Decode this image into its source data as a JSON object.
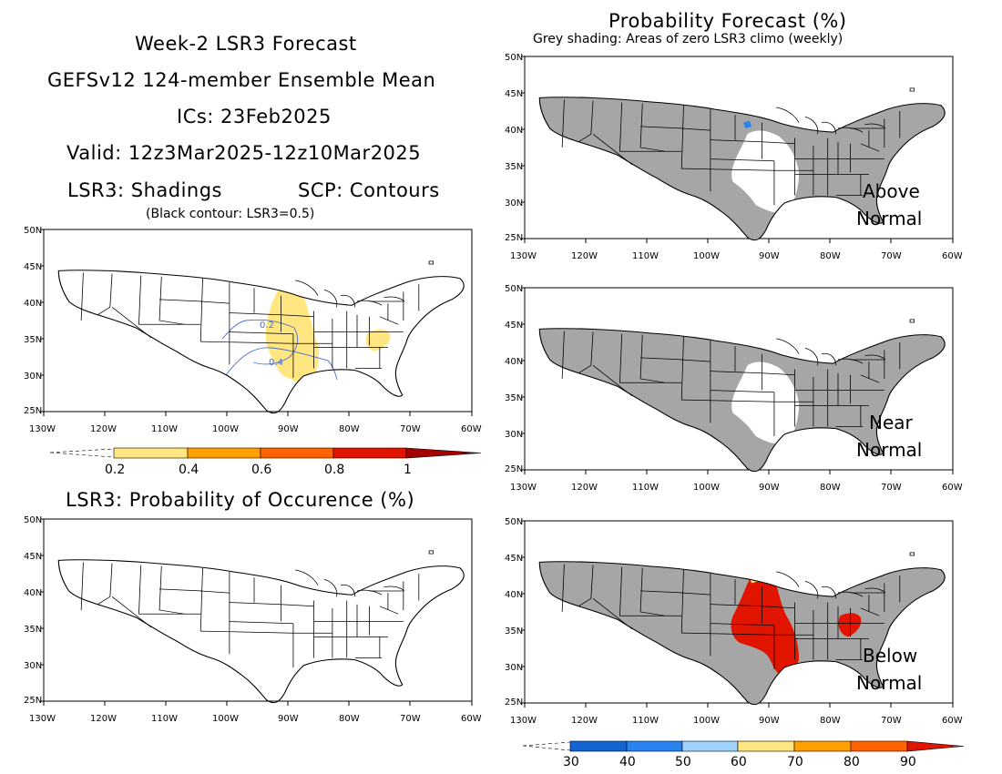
{
  "left_header": {
    "line1": "Week-2 LSR3 Forecast",
    "line2": "GEFSv12 124-member Ensemble Mean",
    "line3": "ICs: 23Feb2025",
    "line4": "Valid: 12z3Mar2025-12z10Mar2025",
    "shadings": "LSR3: Shadings",
    "contours": "SCP: Contours",
    "note": "(Black contour: LSR3=0.5)"
  },
  "right_header": {
    "title": "Probability Forecast (%)",
    "subtitle": "Grey shading: Areas of zero LSR3 climo (weekly)"
  },
  "prob_occurrence_title": "LSR3: Probability of Occurence (%)",
  "axes": {
    "lat_labels": [
      "50N",
      "45N",
      "40N",
      "35N",
      "30N",
      "25N"
    ],
    "lon_labels": [
      "130W",
      "120W",
      "110W",
      "100W",
      "90W",
      "80W",
      "70W",
      "60W"
    ]
  },
  "panel_labels": {
    "above": [
      "Above",
      "Normal"
    ],
    "near": [
      "Near",
      "Normal"
    ],
    "below": [
      "Below",
      "Normal"
    ]
  },
  "contour_labels": [
    "0.2",
    "0.4"
  ],
  "lsr3_colorbar": {
    "labels": [
      "0.2",
      "0.4",
      "0.6",
      "0.8",
      "1"
    ],
    "colors": [
      "#ffe680",
      "#ffa000",
      "#ff6400",
      "#e11400",
      "#a50000"
    ]
  },
  "prob_colorbar": {
    "labels": [
      "30",
      "40",
      "50",
      "60",
      "70",
      "80",
      "90"
    ],
    "colors": [
      "#1464d2",
      "#2882f0",
      "#a0d2ff",
      "#ffe680",
      "#ffa000",
      "#ff6400",
      "#e11400"
    ]
  },
  "colors": {
    "grey_shading": "#a6a6a6",
    "map_line": "#000000",
    "contour": "#4a6ed0"
  }
}
